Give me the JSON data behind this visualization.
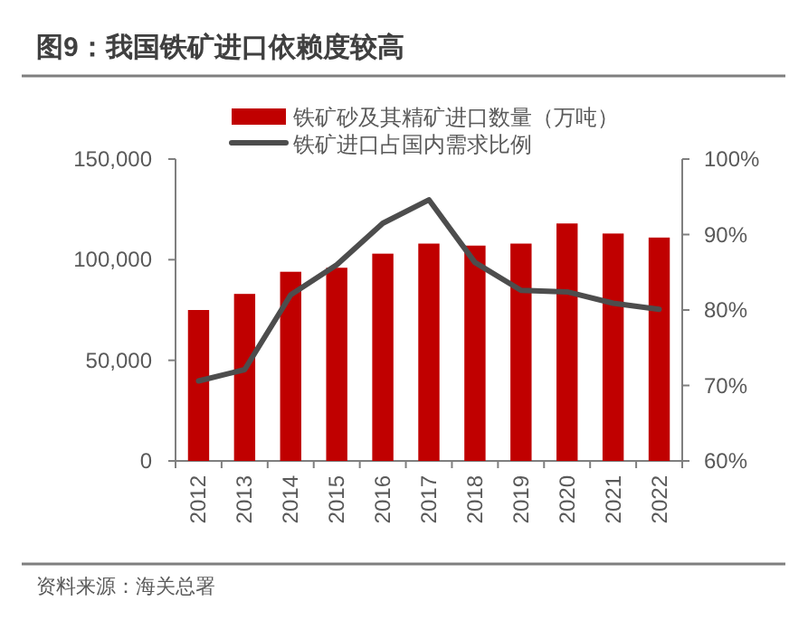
{
  "chart_data": {
    "type": "bar",
    "title": "图9：我国铁矿进口依赖度较高",
    "categories": [
      "2012",
      "2013",
      "2014",
      "2015",
      "2016",
      "2017",
      "2018",
      "2019",
      "2020",
      "2021",
      "2022"
    ],
    "series": [
      {
        "name": "铁矿砂及其精矿进口数量（万吨）",
        "color": "#c00000",
        "values": [
          75000,
          83000,
          94000,
          96000,
          103000,
          108000,
          107000,
          108000,
          118000,
          113000,
          111000
        ]
      },
      {
        "name": "铁矿进口占国内需求比例",
        "type": "line",
        "axis": "y2",
        "color": "#4d4d4d",
        "values": [
          70.6,
          72.1,
          82.0,
          86.0,
          91.5,
          94.6,
          86.3,
          82.6,
          82.4,
          80.9,
          80.1
        ]
      }
    ],
    "ylim": [
      0,
      150000
    ],
    "yticks": [
      {
        "value": 0,
        "label": "0"
      },
      {
        "value": 50000,
        "label": "50,000"
      },
      {
        "value": 100000,
        "label": "100,000"
      },
      {
        "value": 150000,
        "label": "150,000"
      }
    ],
    "y2lim": [
      60,
      100
    ],
    "y2ticks": [
      {
        "value": 60,
        "label": "60%"
      },
      {
        "value": 70,
        "label": "70%"
      },
      {
        "value": 80,
        "label": "80%"
      },
      {
        "value": 90,
        "label": "90%"
      },
      {
        "value": 100,
        "label": "100%"
      }
    ],
    "legend": "top",
    "grid": false,
    "annotations": [
      "资料来源：海关总署"
    ]
  }
}
